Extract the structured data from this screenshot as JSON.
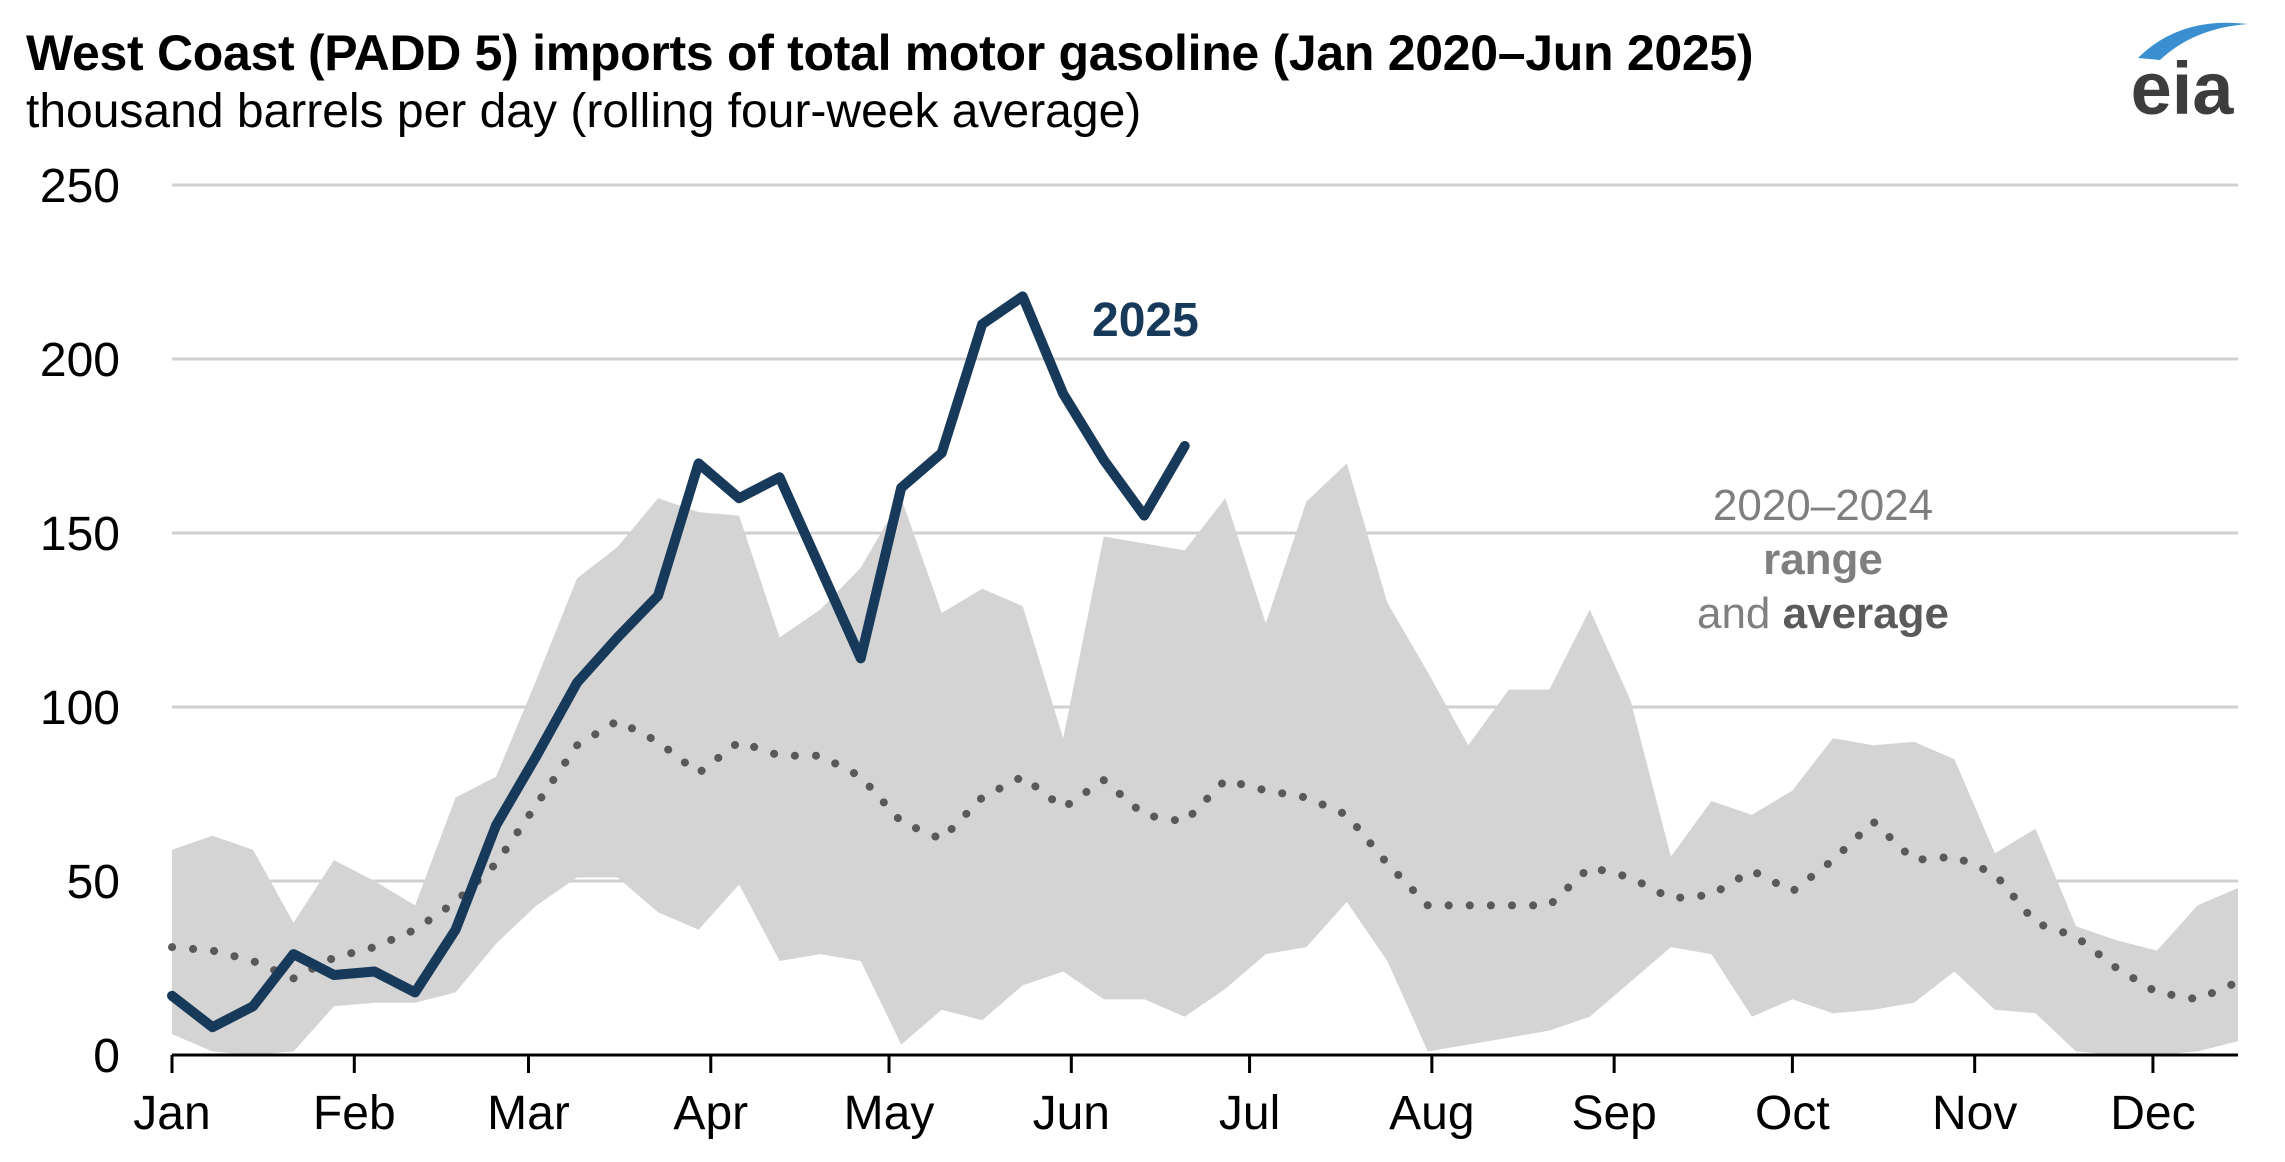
{
  "header": {
    "title": "West Coast (PADD 5) imports of total motor gasoline (Jan 2020–Jun 2025)",
    "subtitle": "thousand barrels per day (rolling four-week average)",
    "logo_text": "eia"
  },
  "colors": {
    "line_2025": "#173a5a",
    "range_fill": "#d4d4d4",
    "average_dots": "#595959",
    "grid": "#d0d0d0",
    "annotation": "#7f7f7f",
    "logo_text": "#3d3d3d",
    "logo_arc": "#3a8fd1"
  },
  "chart_data": {
    "type": "line",
    "x_unit": "week of year",
    "x_range": [
      1,
      52
    ],
    "ylim": [
      0,
      250
    ],
    "y_ticks": [
      0,
      50,
      100,
      150,
      200,
      250
    ],
    "month_ticks": [
      {
        "label": "Jan",
        "week": 1
      },
      {
        "label": "Feb",
        "week": 5.5
      },
      {
        "label": "Mar",
        "week": 9.8
      },
      {
        "label": "Apr",
        "week": 14.3
      },
      {
        "label": "May",
        "week": 18.7
      },
      {
        "label": "Jun",
        "week": 23.2
      },
      {
        "label": "Jul",
        "week": 27.6
      },
      {
        "label": "Aug",
        "week": 32.1
      },
      {
        "label": "Sep",
        "week": 36.6
      },
      {
        "label": "Oct",
        "week": 41.0
      },
      {
        "label": "Nov",
        "week": 45.5
      },
      {
        "label": "Dec",
        "week": 49.9
      }
    ],
    "grid": true,
    "series": [
      {
        "name": "2025",
        "style": "solid",
        "x": [
          1,
          2,
          3,
          4,
          5,
          6,
          7,
          8,
          9,
          10,
          11,
          12,
          13,
          14,
          15,
          16,
          17,
          18,
          19,
          20,
          21,
          22,
          23,
          24,
          25,
          26
        ],
        "values": [
          17,
          8,
          14,
          29,
          23,
          24,
          18,
          36,
          66,
          86,
          107,
          120,
          132,
          170,
          160,
          166,
          140,
          114,
          163,
          173,
          210,
          218,
          190,
          171,
          155,
          175
        ]
      },
      {
        "name": "2020–2024 average",
        "style": "dotted",
        "x": [
          1,
          2,
          3,
          4,
          5,
          6,
          7,
          8,
          9,
          10,
          11,
          12,
          13,
          14,
          15,
          16,
          17,
          18,
          19,
          20,
          21,
          22,
          23,
          24,
          25,
          26,
          27,
          28,
          29,
          30,
          31,
          32,
          33,
          34,
          35,
          36,
          37,
          38,
          39,
          40,
          41,
          42,
          43,
          44,
          45,
          46,
          47,
          48,
          49,
          50,
          51,
          52
        ],
        "values": [
          31,
          30,
          27,
          22,
          28,
          31,
          36,
          44,
          55,
          72,
          89,
          96,
          90,
          81,
          90,
          86,
          86,
          80,
          67,
          62,
          74,
          80,
          71,
          79,
          69,
          67,
          79,
          76,
          74,
          69,
          55,
          43,
          43,
          43,
          43,
          54,
          51,
          45,
          46,
          53,
          47,
          56,
          67,
          56,
          57,
          52,
          38,
          34,
          25,
          18,
          16,
          21
        ]
      },
      {
        "name": "2020–2024 range",
        "style": "band",
        "x": [
          1,
          2,
          3,
          4,
          5,
          6,
          7,
          8,
          9,
          10,
          11,
          12,
          13,
          14,
          15,
          16,
          17,
          18,
          19,
          20,
          21,
          22,
          23,
          24,
          25,
          26,
          27,
          28,
          29,
          30,
          31,
          32,
          33,
          34,
          35,
          36,
          37,
          38,
          39,
          40,
          41,
          42,
          43,
          44,
          45,
          46,
          47,
          48,
          49,
          50,
          51,
          52
        ],
        "low": [
          6,
          1,
          0,
          1,
          14,
          15,
          15,
          18,
          32,
          43,
          51,
          51,
          41,
          36,
          49,
          27,
          29,
          27,
          3,
          13,
          10,
          20,
          24,
          16,
          16,
          11,
          19,
          29,
          31,
          44,
          27,
          1,
          3,
          5,
          7,
          11,
          21,
          31,
          29,
          11,
          16,
          12,
          13,
          15,
          24,
          13,
          12,
          1,
          0,
          0,
          1,
          4
        ],
        "high": [
          59,
          63,
          59,
          38,
          56,
          50,
          43,
          74,
          80,
          108,
          137,
          146,
          160,
          156,
          155,
          120,
          128,
          140,
          160,
          127,
          134,
          129,
          91,
          149,
          147,
          145,
          160,
          124,
          159,
          170,
          130,
          110,
          89,
          105,
          105,
          128,
          102,
          57,
          73,
          69,
          76,
          91,
          89,
          90,
          85,
          58,
          65,
          37,
          33,
          30,
          43,
          48
        ]
      }
    ],
    "annotations": {
      "label_2025": "2025",
      "range_line1": "2020–2024",
      "range_line2": "range",
      "range_line3_prefix": "and",
      "range_line3_bold": "average"
    }
  }
}
